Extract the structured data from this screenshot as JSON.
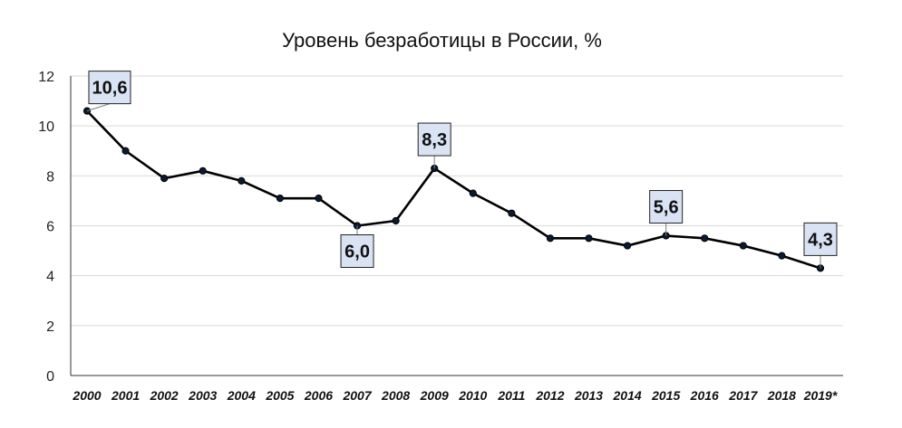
{
  "chart_data": {
    "type": "line",
    "title": "Уровень безработицы в России, %",
    "xlabel": "",
    "ylabel": "",
    "categories": [
      "2000",
      "2001",
      "2002",
      "2003",
      "2004",
      "2005",
      "2006",
      "2007",
      "2008",
      "2009",
      "2010",
      "2011",
      "2012",
      "2013",
      "2014",
      "2015",
      "2016",
      "2017",
      "2018",
      "2019*"
    ],
    "values": [
      10.6,
      9.0,
      7.9,
      8.2,
      7.8,
      7.1,
      7.1,
      6.0,
      6.2,
      8.3,
      7.3,
      6.5,
      5.5,
      5.5,
      5.2,
      5.6,
      5.5,
      5.2,
      4.8,
      4.3
    ],
    "ylim": [
      0,
      12
    ],
    "yticks": [
      "0",
      "2",
      "4",
      "6",
      "8",
      "10",
      "12"
    ],
    "grid": "horizontal",
    "legend": "none",
    "line_color": "#000000",
    "callouts": [
      {
        "index": 0,
        "label": "10,6",
        "placement": "above-right"
      },
      {
        "index": 7,
        "label": "6,0",
        "placement": "below"
      },
      {
        "index": 9,
        "label": "8,3",
        "placement": "above"
      },
      {
        "index": 15,
        "label": "5,6",
        "placement": "above"
      },
      {
        "index": 19,
        "label": "4,3",
        "placement": "above"
      }
    ],
    "callout_fill": "#d9e3f3"
  }
}
